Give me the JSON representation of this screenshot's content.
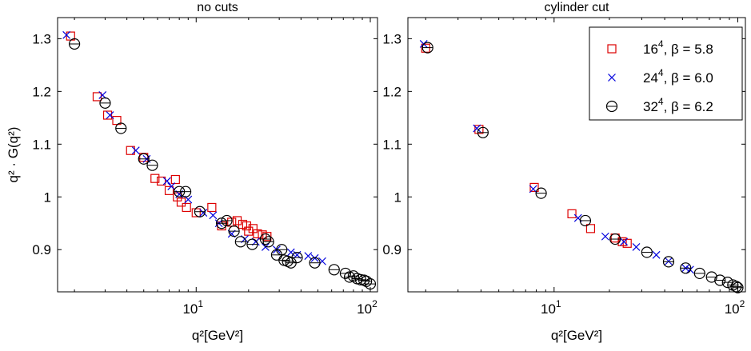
{
  "chart_data": [
    {
      "type": "scatter",
      "title": "no cuts",
      "xlabel": "q²[GeV²]",
      "ylabel": "q² · G(q²)",
      "xscale": "log",
      "xlim": [
        1.6,
        110
      ],
      "ylim": [
        0.82,
        1.34
      ],
      "yticks": [
        0.9,
        1,
        1.1,
        1.2,
        1.3
      ],
      "ytick_labels": [
        "0.9",
        "1",
        "1.1",
        "1.2",
        "1.3"
      ],
      "xticks": [
        10,
        100
      ],
      "xtick_labels": [
        {
          "base": "10",
          "exp": "1"
        },
        {
          "base": "10",
          "exp": "2"
        }
      ],
      "grid": false,
      "series": [
        {
          "marker": "square",
          "color": "#dd0000",
          "points": [
            [
              1.9,
              1.305
            ],
            [
              2.7,
              1.19
            ],
            [
              3.1,
              1.155
            ],
            [
              3.5,
              1.145
            ],
            [
              4.2,
              1.088
            ],
            [
              5.0,
              1.075
            ],
            [
              5.8,
              1.035
            ],
            [
              6.3,
              1.03
            ],
            [
              7.0,
              1.012
            ],
            [
              7.6,
              1.033
            ],
            [
              7.8,
              1.0
            ],
            [
              8.2,
              0.99
            ],
            [
              8.8,
              0.98
            ],
            [
              10.0,
              0.97
            ],
            [
              12.3,
              0.98
            ],
            [
              14.0,
              0.945
            ],
            [
              16.0,
              0.952
            ],
            [
              17.2,
              0.955
            ],
            [
              18.5,
              0.948
            ],
            [
              19.5,
              0.945
            ],
            [
              20.0,
              0.935
            ],
            [
              21.2,
              0.94
            ],
            [
              22.5,
              0.93
            ],
            [
              24.0,
              0.928
            ],
            [
              25.5,
              0.925
            ]
          ]
        },
        {
          "marker": "x",
          "color": "#0000dd",
          "points": [
            [
              1.8,
              1.307
            ],
            [
              2.9,
              1.193
            ],
            [
              3.2,
              1.155
            ],
            [
              4.5,
              1.088
            ],
            [
              5.2,
              1.072
            ],
            [
              6.8,
              1.03
            ],
            [
              7.2,
              1.02
            ],
            [
              8.0,
              1.005
            ],
            [
              9.0,
              0.995
            ],
            [
              11.0,
              0.97
            ],
            [
              12.5,
              0.965
            ],
            [
              13.5,
              0.95
            ],
            [
              16.0,
              0.93
            ],
            [
              19.0,
              0.92
            ],
            [
              22.0,
              0.915
            ],
            [
              25.0,
              0.905
            ],
            [
              29.0,
              0.9
            ],
            [
              35.0,
              0.895
            ],
            [
              38.0,
              0.89
            ],
            [
              44.0,
              0.888
            ],
            [
              48.0,
              0.884
            ],
            [
              53.0,
              0.878
            ]
          ]
        },
        {
          "marker": "circle",
          "color": "#000000",
          "points": [
            [
              2.0,
              1.29
            ],
            [
              3.0,
              1.178
            ],
            [
              3.7,
              1.13
            ],
            [
              5.0,
              1.072
            ],
            [
              5.6,
              1.06
            ],
            [
              8.0,
              1.01
            ],
            [
              8.7,
              1.01
            ],
            [
              10.5,
              0.972
            ],
            [
              14.0,
              0.95
            ],
            [
              15.0,
              0.955
            ],
            [
              16.5,
              0.935
            ],
            [
              18.0,
              0.915
            ],
            [
              21.0,
              0.91
            ],
            [
              25.0,
              0.92
            ],
            [
              26.0,
              0.915
            ],
            [
              29.0,
              0.89
            ],
            [
              31.0,
              0.9
            ],
            [
              32.0,
              0.88
            ],
            [
              33.5,
              0.878
            ],
            [
              35.0,
              0.875
            ],
            [
              38.0,
              0.885
            ],
            [
              48.0,
              0.875
            ],
            [
              62.0,
              0.862
            ],
            [
              72.0,
              0.855
            ],
            [
              76.0,
              0.848
            ],
            [
              80.0,
              0.85
            ],
            [
              84.0,
              0.845
            ],
            [
              88.0,
              0.843
            ],
            [
              92.0,
              0.842
            ],
            [
              95.0,
              0.84
            ],
            [
              100.0,
              0.835
            ]
          ]
        }
      ]
    },
    {
      "type": "scatter",
      "title": "cylinder cut",
      "xlabel": "q²[GeV²]",
      "ylabel": "",
      "xscale": "log",
      "xlim": [
        1.6,
        110
      ],
      "ylim": [
        0.82,
        1.34
      ],
      "yticks": [
        0.9,
        1,
        1.1,
        1.2,
        1.3
      ],
      "ytick_labels": [
        "0.9",
        "1",
        "1.1",
        "1.2",
        "1.3"
      ],
      "xticks": [
        10,
        100
      ],
      "xtick_labels": [
        {
          "base": "10",
          "exp": "1"
        },
        {
          "base": "10",
          "exp": "2"
        }
      ],
      "grid": false,
      "legend_position": "top-right",
      "series": [
        {
          "name": "16⁴, β = 5.8",
          "legend_base": "16",
          "legend_exp": "4",
          "legend_rest": ", β = 5.8",
          "marker": "square",
          "color": "#dd0000",
          "points": [
            [
              2.0,
              1.282
            ],
            [
              3.9,
              1.128
            ],
            [
              7.8,
              1.018
            ],
            [
              12.5,
              0.968
            ],
            [
              15.8,
              0.94
            ],
            [
              21.5,
              0.922
            ],
            [
              23.5,
              0.915
            ],
            [
              25.0,
              0.912
            ]
          ]
        },
        {
          "name": "24⁴, β = 6.0",
          "legend_base": "24",
          "legend_exp": "4",
          "legend_rest": ", β = 6.0",
          "marker": "x",
          "color": "#0000dd",
          "points": [
            [
              1.95,
              1.29
            ],
            [
              3.8,
              1.13
            ],
            [
              7.7,
              1.015
            ],
            [
              13.5,
              0.96
            ],
            [
              19.0,
              0.925
            ],
            [
              24.0,
              0.915
            ],
            [
              28.0,
              0.905
            ],
            [
              36.0,
              0.89
            ],
            [
              42.0,
              0.878
            ],
            [
              52.0,
              0.865
            ],
            [
              55.0,
              0.862
            ]
          ]
        },
        {
          "name": "32⁴, β = 6.2",
          "legend_base": "32",
          "legend_exp": "4",
          "legend_rest": ", β = 6.2",
          "marker": "circle",
          "color": "#000000",
          "points": [
            [
              2.05,
              1.283
            ],
            [
              4.1,
              1.122
            ],
            [
              8.5,
              1.007
            ],
            [
              14.8,
              0.955
            ],
            [
              21.5,
              0.92
            ],
            [
              32.0,
              0.895
            ],
            [
              42.0,
              0.877
            ],
            [
              52.0,
              0.865
            ],
            [
              62.0,
              0.855
            ],
            [
              72.0,
              0.848
            ],
            [
              80.0,
              0.842
            ],
            [
              88.0,
              0.838
            ],
            [
              94.0,
              0.833
            ],
            [
              98.0,
              0.83
            ],
            [
              100.0,
              0.828
            ]
          ]
        }
      ]
    }
  ]
}
